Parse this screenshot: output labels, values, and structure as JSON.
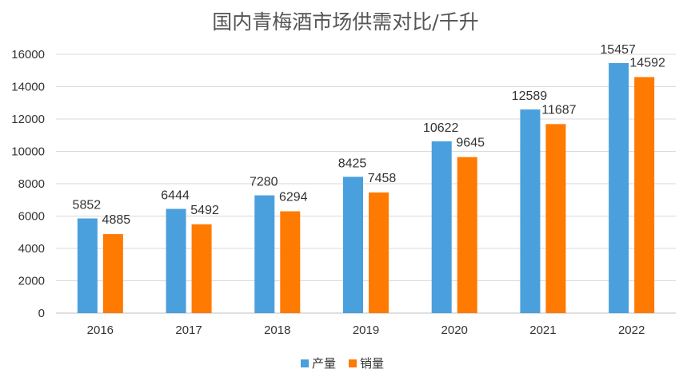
{
  "chart_data": {
    "type": "bar",
    "title": "国内青梅酒市场供需对比/千升",
    "categories": [
      "2016",
      "2017",
      "2018",
      "2019",
      "2020",
      "2021",
      "2022"
    ],
    "series": [
      {
        "name": "产量",
        "color": "#4A9FDD",
        "values": [
          5852,
          6444,
          7280,
          8425,
          10622,
          12589,
          15457
        ]
      },
      {
        "name": "销量",
        "color": "#FF7A00",
        "values": [
          4885,
          5492,
          6294,
          7458,
          9645,
          11687,
          14592
        ]
      }
    ],
    "yticks": [
      0,
      2000,
      4000,
      6000,
      8000,
      10000,
      12000,
      14000,
      16000
    ],
    "ylim": [
      0,
      16000
    ],
    "xlabel": "",
    "ylabel": "",
    "grid": true,
    "legend_position": "bottom-center"
  }
}
